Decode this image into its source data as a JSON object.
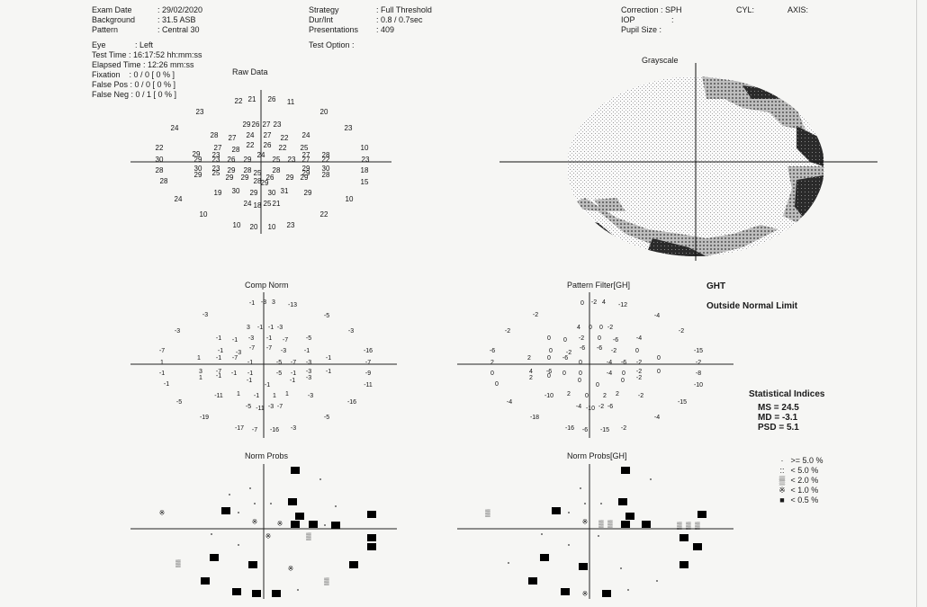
{
  "header": {
    "exam_date_label": "Exam Date",
    "exam_date_value": ": 29/02/2020",
    "background_label": "Background",
    "background_value": ": 31.5 ASB",
    "pattern_label": "Pattern",
    "pattern_value": ": Central 30",
    "strategy_label": "Strategy",
    "strategy_value": ": Full Threshold",
    "durint_label": "Dur/Int",
    "durint_value": ": 0.8 / 0.7sec",
    "presentations_label": "Presentations",
    "presentations_value": ": 409",
    "test_option_label": "Test Option :",
    "correction": "Correction : SPH",
    "cyl": "CYL:",
    "axis": "AXIS:",
    "iop": "IOP",
    "iop_colon": ":",
    "pupil": "Pupil Size :",
    "eye_label": "Eye",
    "eye_value": ": Left",
    "test_time": "Test Time : 16:17:52 hh:mm:ss",
    "elapsed_time": "Elapsed Time : 12:26 mm:ss",
    "fixation": "Fixation    : 0 / 0 [ 0 % ]",
    "false_pos": "False Pos : 0 / 0 [ 0 % ]",
    "false_neg": "False Neg : 0 / 1 [ 0 % ]"
  },
  "titles": {
    "raw": "Raw Data",
    "grayscale": "Grayscale",
    "comp_norm": "Comp Norm",
    "pattern_filter": "Pattern Filter[GH]",
    "norm_probs": "Norm Probs",
    "norm_probs_gh": "Norm Probs[GH]"
  },
  "ght": {
    "label": "GHT",
    "result": "Outside Normal Limit"
  },
  "indices": {
    "title": "Statistical Indices",
    "ms": "MS = 24.5",
    "md": "MD = -3.1",
    "psd": "PSD = 5.1"
  },
  "legend": [
    {
      "symbol": "·",
      "text": ">= 5.0 %"
    },
    {
      "symbol": "::",
      "text": "<  5.0 %"
    },
    {
      "symbol": "▒",
      "text": "<  2.0 %"
    },
    {
      "symbol": "※",
      "text": "<  1.0 %"
    },
    {
      "symbol": "■",
      "text": "<  0.5 %"
    }
  ],
  "raw_values": [
    {
      "t": "22",
      "x": -25,
      "y": -68
    },
    {
      "t": "21",
      "x": -10,
      "y": -70
    },
    {
      "t": "26",
      "x": 12,
      "y": -70
    },
    {
      "t": "11",
      "x": 33,
      "y": -67
    },
    {
      "t": "23",
      "x": -68,
      "y": -56
    },
    {
      "t": "20",
      "x": 70,
      "y": -56
    },
    {
      "t": "24",
      "x": -96,
      "y": -38
    },
    {
      "t": "29",
      "x": -16,
      "y": -42
    },
    {
      "t": "26",
      "x": -6,
      "y": -42
    },
    {
      "t": "27",
      "x": 6,
      "y": -42
    },
    {
      "t": "23",
      "x": 18,
      "y": -42
    },
    {
      "t": "23",
      "x": 97,
      "y": -38
    },
    {
      "t": "28",
      "x": -52,
      "y": -30
    },
    {
      "t": "27",
      "x": -32,
      "y": -27
    },
    {
      "t": "24",
      "x": -12,
      "y": -30
    },
    {
      "t": "27",
      "x": 7,
      "y": -30
    },
    {
      "t": "22",
      "x": 26,
      "y": -27
    },
    {
      "t": "24",
      "x": 50,
      "y": -30
    },
    {
      "t": "22",
      "x": -113,
      "y": -16
    },
    {
      "t": "27",
      "x": -48,
      "y": -16
    },
    {
      "t": "22",
      "x": -12,
      "y": -19
    },
    {
      "t": "26",
      "x": 7,
      "y": -19
    },
    {
      "t": "22",
      "x": 24,
      "y": -16
    },
    {
      "t": "25",
      "x": 48,
      "y": -16
    },
    {
      "t": "10",
      "x": 115,
      "y": -16
    },
    {
      "t": "29",
      "x": -72,
      "y": -9
    },
    {
      "t": "28",
      "x": -28,
      "y": -14
    },
    {
      "t": "23",
      "x": -50,
      "y": -8
    },
    {
      "t": "24",
      "x": 0,
      "y": -8
    },
    {
      "t": "27",
      "x": 50,
      "y": -8
    },
    {
      "t": "28",
      "x": 72,
      "y": -8
    },
    {
      "t": "30",
      "x": -113,
      "y": -3
    },
    {
      "t": "29",
      "x": -70,
      "y": -3
    },
    {
      "t": "23",
      "x": -50,
      "y": -3
    },
    {
      "t": "26",
      "x": -33,
      "y": -3
    },
    {
      "t": "29",
      "x": -15,
      "y": -3
    },
    {
      "t": "25",
      "x": 17,
      "y": -3
    },
    {
      "t": "23",
      "x": 34,
      "y": -3
    },
    {
      "t": "27",
      "x": 50,
      "y": -3
    },
    {
      "t": "22",
      "x": 72,
      "y": -3
    },
    {
      "t": "23",
      "x": 116,
      "y": -3
    },
    {
      "t": "28",
      "x": -113,
      "y": 9
    },
    {
      "t": "30",
      "x": -70,
      "y": 7
    },
    {
      "t": "23",
      "x": -50,
      "y": 7
    },
    {
      "t": "29",
      "x": -33,
      "y": 9
    },
    {
      "t": "28",
      "x": -15,
      "y": 9
    },
    {
      "t": "25",
      "x": -4,
      "y": 12
    },
    {
      "t": "28",
      "x": 17,
      "y": 9
    },
    {
      "t": "29",
      "x": 50,
      "y": 7
    },
    {
      "t": "30",
      "x": 72,
      "y": 7
    },
    {
      "t": "18",
      "x": 115,
      "y": 9
    },
    {
      "t": "29",
      "x": -70,
      "y": 14
    },
    {
      "t": "25",
      "x": -50,
      "y": 12
    },
    {
      "t": "29",
      "x": -35,
      "y": 17
    },
    {
      "t": "29",
      "x": -18,
      "y": 17
    },
    {
      "t": "28",
      "x": -4,
      "y": 21
    },
    {
      "t": "26",
      "x": 10,
      "y": 17
    },
    {
      "t": "29",
      "x": 32,
      "y": 17
    },
    {
      "t": "29",
      "x": 48,
      "y": 17
    },
    {
      "t": "29",
      "x": 50,
      "y": 12
    },
    {
      "t": "28",
      "x": 72,
      "y": 14
    },
    {
      "t": "28",
      "x": -108,
      "y": 21
    },
    {
      "t": "29",
      "x": 4,
      "y": 23
    },
    {
      "t": "15",
      "x": 115,
      "y": 22
    },
    {
      "t": "19",
      "x": -48,
      "y": 34
    },
    {
      "t": "30",
      "x": -28,
      "y": 32
    },
    {
      "t": "29",
      "x": -8,
      "y": 34
    },
    {
      "t": "30",
      "x": 12,
      "y": 34
    },
    {
      "t": "31",
      "x": 26,
      "y": 32
    },
    {
      "t": "29",
      "x": 52,
      "y": 34
    },
    {
      "t": "24",
      "x": -92,
      "y": 41
    },
    {
      "t": "24",
      "x": -15,
      "y": 46
    },
    {
      "t": "18",
      "x": -4,
      "y": 48
    },
    {
      "t": "25",
      "x": 7,
      "y": 46
    },
    {
      "t": "21",
      "x": 17,
      "y": 46
    },
    {
      "t": "10",
      "x": 98,
      "y": 41
    },
    {
      "t": "10",
      "x": -64,
      "y": 58
    },
    {
      "t": "22",
      "x": 70,
      "y": 58
    },
    {
      "t": "10",
      "x": -27,
      "y": 70
    },
    {
      "t": "20",
      "x": -8,
      "y": 72
    },
    {
      "t": "10",
      "x": 12,
      "y": 72
    },
    {
      "t": "23",
      "x": 33,
      "y": 70
    }
  ],
  "comp_values": [
    {
      "t": "-1",
      "x": -13,
      "y": -69
    },
    {
      "t": "-3",
      "x": 0,
      "y": -70
    },
    {
      "t": "3",
      "x": 11,
      "y": -70
    },
    {
      "t": "-13",
      "x": 32,
      "y": -67
    },
    {
      "t": "-3",
      "x": -65,
      "y": -56
    },
    {
      "t": "-5",
      "x": 70,
      "y": -55
    },
    {
      "t": "-3",
      "x": -96,
      "y": -38
    },
    {
      "t": "3",
      "x": -17,
      "y": -42
    },
    {
      "t": "-1",
      "x": -4,
      "y": -42
    },
    {
      "t": "-1",
      "x": 8,
      "y": -42
    },
    {
      "t": "-3",
      "x": 18,
      "y": -42
    },
    {
      "t": "-3",
      "x": 97,
      "y": -38
    },
    {
      "t": "-1",
      "x": -50,
      "y": -30
    },
    {
      "t": "-1",
      "x": -32,
      "y": -28
    },
    {
      "t": "-3",
      "x": -14,
      "y": -30
    },
    {
      "t": "-1",
      "x": 6,
      "y": -30
    },
    {
      "t": "-7",
      "x": 24,
      "y": -28
    },
    {
      "t": "-5",
      "x": 50,
      "y": -30
    },
    {
      "t": "-7",
      "x": -113,
      "y": -16
    },
    {
      "t": "-1",
      "x": -48,
      "y": -16
    },
    {
      "t": "-3",
      "x": -28,
      "y": -14
    },
    {
      "t": "-7",
      "x": -13,
      "y": -19
    },
    {
      "t": "-7",
      "x": 6,
      "y": -19
    },
    {
      "t": "-3",
      "x": 22,
      "y": -16
    },
    {
      "t": "-1",
      "x": 48,
      "y": -16
    },
    {
      "t": "-16",
      "x": 116,
      "y": -16
    },
    {
      "t": "1",
      "x": -113,
      "y": -3
    },
    {
      "t": "1",
      "x": -72,
      "y": -8
    },
    {
      "t": "-1",
      "x": -50,
      "y": -8
    },
    {
      "t": "-7",
      "x": -32,
      "y": -8
    },
    {
      "t": "-1",
      "x": -15,
      "y": -3
    },
    {
      "t": "-5",
      "x": 17,
      "y": -3
    },
    {
      "t": "-7",
      "x": 33,
      "y": -3
    },
    {
      "t": "-3",
      "x": 50,
      "y": -3
    },
    {
      "t": "-1",
      "x": 72,
      "y": -8
    },
    {
      "t": "-7",
      "x": 116,
      "y": -3
    },
    {
      "t": "-1",
      "x": -113,
      "y": 9
    },
    {
      "t": "3",
      "x": -70,
      "y": 7
    },
    {
      "t": "-7",
      "x": -50,
      "y": 7
    },
    {
      "t": "-1",
      "x": -33,
      "y": 9
    },
    {
      "t": "-1",
      "x": -15,
      "y": 9
    },
    {
      "t": "-5",
      "x": 17,
      "y": 9
    },
    {
      "t": "-1",
      "x": 33,
      "y": 9
    },
    {
      "t": "-3",
      "x": 50,
      "y": 7
    },
    {
      "t": "-1",
      "x": 72,
      "y": 7
    },
    {
      "t": "-9",
      "x": 116,
      "y": 9
    },
    {
      "t": "-1",
      "x": -108,
      "y": 21
    },
    {
      "t": "1",
      "x": -70,
      "y": 14
    },
    {
      "t": "-1",
      "x": -50,
      "y": 12
    },
    {
      "t": "-1",
      "x": -16,
      "y": 17
    },
    {
      "t": "-1",
      "x": 4,
      "y": 22
    },
    {
      "t": "-1",
      "x": 32,
      "y": 17
    },
    {
      "t": "-3",
      "x": 50,
      "y": 14
    },
    {
      "t": "-11",
      "x": 116,
      "y": 22
    },
    {
      "t": "-11",
      "x": -50,
      "y": 34
    },
    {
      "t": "1",
      "x": -28,
      "y": 32
    },
    {
      "t": "-1",
      "x": -8,
      "y": 34
    },
    {
      "t": "1",
      "x": 12,
      "y": 34
    },
    {
      "t": "1",
      "x": 26,
      "y": 32
    },
    {
      "t": "-3",
      "x": 52,
      "y": 34
    },
    {
      "t": "-5",
      "x": -94,
      "y": 41
    },
    {
      "t": "-5",
      "x": -17,
      "y": 46
    },
    {
      "t": "-11",
      "x": -4,
      "y": 48
    },
    {
      "t": "-3",
      "x": 8,
      "y": 46
    },
    {
      "t": "-7",
      "x": 18,
      "y": 46
    },
    {
      "t": "-16",
      "x": 98,
      "y": 41
    },
    {
      "t": "-19",
      "x": -66,
      "y": 58
    },
    {
      "t": "-5",
      "x": 70,
      "y": 58
    },
    {
      "t": "-17",
      "x": -27,
      "y": 70
    },
    {
      "t": "-7",
      "x": -10,
      "y": 72
    },
    {
      "t": "-16",
      "x": 12,
      "y": 72
    },
    {
      "t": "-3",
      "x": 33,
      "y": 70
    }
  ],
  "pattern_values": [
    {
      "t": "0",
      "x": -13,
      "y": -69
    },
    {
      "t": "-2",
      "x": 0,
      "y": -70
    },
    {
      "t": "4",
      "x": 11,
      "y": -70
    },
    {
      "t": "-12",
      "x": 32,
      "y": -67
    },
    {
      "t": "-2",
      "x": -65,
      "y": -56
    },
    {
      "t": "-4",
      "x": 70,
      "y": -55
    },
    {
      "t": "-2",
      "x": -96,
      "y": -38
    },
    {
      "t": "4",
      "x": -17,
      "y": -42
    },
    {
      "t": "0",
      "x": -4,
      "y": -42
    },
    {
      "t": "0",
      "x": 8,
      "y": -42
    },
    {
      "t": "-2",
      "x": 18,
      "y": -42
    },
    {
      "t": "-2",
      "x": 97,
      "y": -38
    },
    {
      "t": "0",
      "x": -50,
      "y": -30
    },
    {
      "t": "0",
      "x": -32,
      "y": -28
    },
    {
      "t": "-2",
      "x": -14,
      "y": -30
    },
    {
      "t": "0",
      "x": 6,
      "y": -30
    },
    {
      "t": "-6",
      "x": 24,
      "y": -28
    },
    {
      "t": "-4",
      "x": 50,
      "y": -30
    },
    {
      "t": "-6",
      "x": -113,
      "y": -16
    },
    {
      "t": "0",
      "x": -48,
      "y": -16
    },
    {
      "t": "-2",
      "x": -28,
      "y": -14
    },
    {
      "t": "-6",
      "x": -13,
      "y": -19
    },
    {
      "t": "-6",
      "x": 6,
      "y": -19
    },
    {
      "t": "-2",
      "x": 22,
      "y": -16
    },
    {
      "t": "0",
      "x": 48,
      "y": -16
    },
    {
      "t": "-15",
      "x": 116,
      "y": -16
    },
    {
      "t": "2",
      "x": -113,
      "y": -3
    },
    {
      "t": "2",
      "x": -72,
      "y": -8
    },
    {
      "t": "0",
      "x": -50,
      "y": -8
    },
    {
      "t": "-6",
      "x": -32,
      "y": -8
    },
    {
      "t": "0",
      "x": -15,
      "y": -3
    },
    {
      "t": "-4",
      "x": 17,
      "y": -3
    },
    {
      "t": "-6",
      "x": 33,
      "y": -3
    },
    {
      "t": "-2",
      "x": 50,
      "y": -3
    },
    {
      "t": "0",
      "x": 72,
      "y": -8
    },
    {
      "t": "-2",
      "x": 116,
      "y": -3
    },
    {
      "t": "0",
      "x": -113,
      "y": 9
    },
    {
      "t": "4",
      "x": -70,
      "y": 7
    },
    {
      "t": "-6",
      "x": -50,
      "y": 7
    },
    {
      "t": "0",
      "x": -33,
      "y": 9
    },
    {
      "t": "0",
      "x": -15,
      "y": 9
    },
    {
      "t": "-4",
      "x": 17,
      "y": 9
    },
    {
      "t": "0",
      "x": 33,
      "y": 9
    },
    {
      "t": "-2",
      "x": 50,
      "y": 7
    },
    {
      "t": "0",
      "x": 72,
      "y": 7
    },
    {
      "t": "-8",
      "x": 116,
      "y": 9
    },
    {
      "t": "0",
      "x": -108,
      "y": 21
    },
    {
      "t": "2",
      "x": -70,
      "y": 14
    },
    {
      "t": "0",
      "x": -50,
      "y": 12
    },
    {
      "t": "0",
      "x": -16,
      "y": 17
    },
    {
      "t": "0",
      "x": 4,
      "y": 22
    },
    {
      "t": "0",
      "x": 32,
      "y": 17
    },
    {
      "t": "-2",
      "x": 50,
      "y": 14
    },
    {
      "t": "-10",
      "x": 116,
      "y": 22
    },
    {
      "t": "-10",
      "x": -50,
      "y": 34
    },
    {
      "t": "2",
      "x": -28,
      "y": 32
    },
    {
      "t": "0",
      "x": -8,
      "y": 34
    },
    {
      "t": "2",
      "x": 12,
      "y": 34
    },
    {
      "t": "2",
      "x": 26,
      "y": 32
    },
    {
      "t": "-2",
      "x": 52,
      "y": 34
    },
    {
      "t": "-4",
      "x": -94,
      "y": 41
    },
    {
      "t": "-4",
      "x": -17,
      "y": 46
    },
    {
      "t": "-10",
      "x": -4,
      "y": 48
    },
    {
      "t": "-2",
      "x": 8,
      "y": 46
    },
    {
      "t": "-6",
      "x": 18,
      "y": 46
    },
    {
      "t": "-15",
      "x": 98,
      "y": 41
    },
    {
      "t": "-18",
      "x": -66,
      "y": 58
    },
    {
      "t": "-4",
      "x": 70,
      "y": 58
    },
    {
      "t": "-16",
      "x": -27,
      "y": 70
    },
    {
      "t": "-6",
      "x": -10,
      "y": 72
    },
    {
      "t": "-15",
      "x": 12,
      "y": 72
    },
    {
      "t": "-2",
      "x": 33,
      "y": 70
    }
  ],
  "norm_probs_marks": [
    {
      "k": "b",
      "x": 35,
      "y": -65
    },
    {
      "k": "d",
      "x": 63,
      "y": -55
    },
    {
      "k": "d",
      "x": -15,
      "y": -45
    },
    {
      "k": "d",
      "x": -38,
      "y": -38
    },
    {
      "k": "b",
      "x": 32,
      "y": -30
    },
    {
      "k": "d",
      "x": -10,
      "y": -28
    },
    {
      "k": "d",
      "x": 8,
      "y": -28
    },
    {
      "k": "d",
      "x": 80,
      "y": -25
    },
    {
      "k": "h",
      "x": -113,
      "y": -18
    },
    {
      "k": "b",
      "x": -42,
      "y": -20
    },
    {
      "k": "d",
      "x": -28,
      "y": -18
    },
    {
      "k": "b",
      "x": 40,
      "y": -14
    },
    {
      "k": "b",
      "x": 120,
      "y": -16
    },
    {
      "k": "h",
      "x": -10,
      "y": -8
    },
    {
      "k": "h",
      "x": 18,
      "y": -6
    },
    {
      "k": "b",
      "x": 35,
      "y": -5
    },
    {
      "k": "b",
      "x": 55,
      "y": -5
    },
    {
      "k": "d",
      "x": 68,
      "y": -4
    },
    {
      "k": "b",
      "x": 80,
      "y": -4
    },
    {
      "k": "d",
      "x": -58,
      "y": 6
    },
    {
      "k": "h",
      "x": 5,
      "y": 8
    },
    {
      "k": "l",
      "x": 50,
      "y": 8
    },
    {
      "k": "b",
      "x": 120,
      "y": 10
    },
    {
      "k": "d",
      "x": -28,
      "y": 18
    },
    {
      "k": "b",
      "x": 120,
      "y": 20
    },
    {
      "k": "b",
      "x": -55,
      "y": 32
    },
    {
      "k": "l",
      "x": -95,
      "y": 38
    },
    {
      "k": "b",
      "x": -12,
      "y": 40
    },
    {
      "k": "h",
      "x": 30,
      "y": 44
    },
    {
      "k": "b",
      "x": 100,
      "y": 40
    },
    {
      "k": "b",
      "x": -65,
      "y": 58
    },
    {
      "k": "l",
      "x": 70,
      "y": 58
    },
    {
      "k": "b",
      "x": -30,
      "y": 70
    },
    {
      "k": "b",
      "x": -8,
      "y": 72
    },
    {
      "k": "b",
      "x": 14,
      "y": 72
    },
    {
      "k": "d",
      "x": 38,
      "y": 68
    }
  ],
  "norm_probs_gh_marks": [
    {
      "k": "b",
      "x": 35,
      "y": -65
    },
    {
      "k": "d",
      "x": 63,
      "y": -55
    },
    {
      "k": "d",
      "x": -15,
      "y": -45
    },
    {
      "k": "b",
      "x": 32,
      "y": -30
    },
    {
      "k": "d",
      "x": -10,
      "y": -28
    },
    {
      "k": "d",
      "x": 8,
      "y": -28
    },
    {
      "k": "l",
      "x": -118,
      "y": -18
    },
    {
      "k": "b",
      "x": -42,
      "y": -20
    },
    {
      "k": "d",
      "x": -28,
      "y": -18
    },
    {
      "k": "b",
      "x": 40,
      "y": -14
    },
    {
      "k": "b",
      "x": 120,
      "y": -16
    },
    {
      "k": "h",
      "x": -10,
      "y": -8
    },
    {
      "k": "l",
      "x": 8,
      "y": -6
    },
    {
      "k": "l",
      "x": 18,
      "y": -6
    },
    {
      "k": "b",
      "x": 35,
      "y": -5
    },
    {
      "k": "b",
      "x": 58,
      "y": -5
    },
    {
      "k": "l",
      "x": 95,
      "y": -4
    },
    {
      "k": "l",
      "x": 105,
      "y": -4
    },
    {
      "k": "l",
      "x": 115,
      "y": -4
    },
    {
      "k": "d",
      "x": -58,
      "y": 6
    },
    {
      "k": "d",
      "x": 5,
      "y": 8
    },
    {
      "k": "b",
      "x": 100,
      "y": 10
    },
    {
      "k": "d",
      "x": -28,
      "y": 18
    },
    {
      "k": "b",
      "x": 115,
      "y": 20
    },
    {
      "k": "b",
      "x": -55,
      "y": 32
    },
    {
      "k": "d",
      "x": -95,
      "y": 38
    },
    {
      "k": "b",
      "x": -12,
      "y": 42
    },
    {
      "k": "d",
      "x": 30,
      "y": 44
    },
    {
      "k": "b",
      "x": 100,
      "y": 40
    },
    {
      "k": "b",
      "x": -68,
      "y": 58
    },
    {
      "k": "d",
      "x": 70,
      "y": 58
    },
    {
      "k": "b",
      "x": -32,
      "y": 70
    },
    {
      "k": "h",
      "x": -10,
      "y": 72
    },
    {
      "k": "b",
      "x": 14,
      "y": 72
    },
    {
      "k": "d",
      "x": 38,
      "y": 68
    }
  ]
}
